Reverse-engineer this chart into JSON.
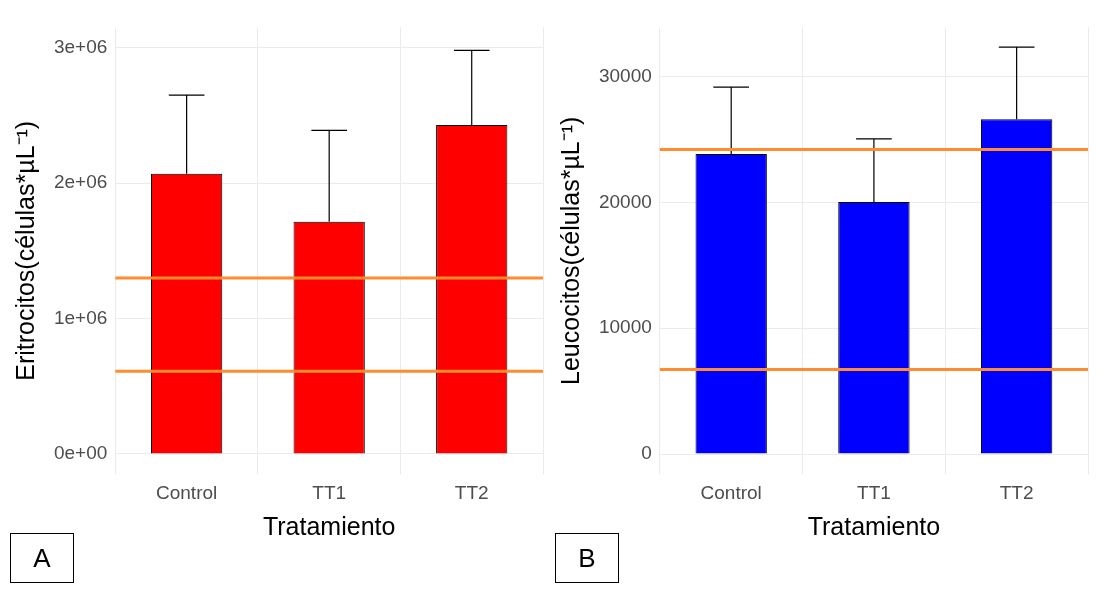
{
  "chart_data": [
    {
      "type": "bar",
      "ylabel": "Eritrocitos(células*µL⁻¹)",
      "xlabel": "Tratamiento",
      "annotations": [
        "A"
      ],
      "categories": [
        "Control",
        "TT1",
        "TT2"
      ],
      "series": [
        {
          "color": "#ff0000",
          "values": [
            2070000,
            1715000,
            2430000
          ],
          "errors": [
            [
              2070000,
              2650000
            ],
            [
              1715000,
              2390000
            ],
            [
              2430000,
              2980000
            ]
          ]
        }
      ],
      "ylim": [
        -150000,
        3150000
      ],
      "yticks": [
        {
          "value": 0,
          "label": "0e+00"
        },
        {
          "value": 1000000,
          "label": "1e+06"
        },
        {
          "value": 2000000,
          "label": "2e+06"
        },
        {
          "value": 3000000,
          "label": "3e+06"
        }
      ],
      "ref_lines": [
        {
          "axis": "y",
          "value": 1300000,
          "color": "#ff8c2e"
        },
        {
          "axis": "y",
          "value": 610000,
          "color": "#ff8c2e"
        }
      ],
      "grid": true
    },
    {
      "type": "bar",
      "ylabel": "Leucocitos(células*µL⁻¹)",
      "xlabel": "Tratamiento",
      "annotations": [
        "B"
      ],
      "categories": [
        "Control",
        "TT1",
        "TT2"
      ],
      "series": [
        {
          "color": "#0000ff",
          "values": [
            23850,
            20030,
            26610
          ],
          "errors": [
            [
              23850,
              29160
            ],
            [
              20030,
              25050
            ],
            [
              26610,
              32340
            ]
          ]
        }
      ],
      "ylim": [
        -1600,
        33900
      ],
      "yticks": [
        0,
        10000,
        20000,
        30000
      ],
      "ref_lines": [
        {
          "axis": "y",
          "value": 24200,
          "color": "#ff8c2e"
        },
        {
          "axis": "y",
          "value": 6720,
          "color": "#ff8c2e"
        }
      ],
      "grid": true
    }
  ]
}
